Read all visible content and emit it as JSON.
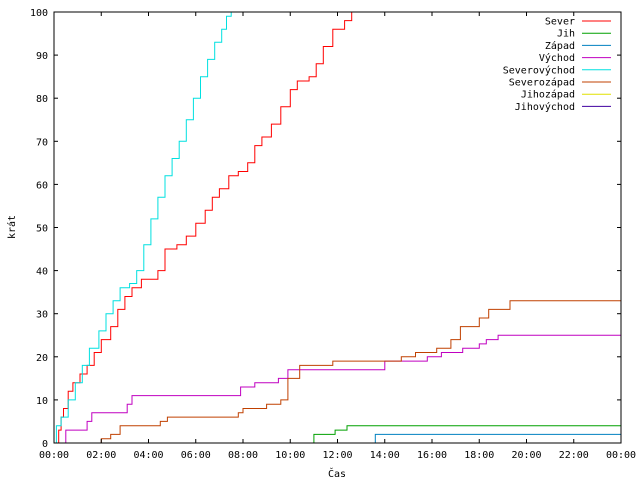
{
  "chart_data": {
    "type": "line",
    "title": "",
    "xlabel": "Čas",
    "ylabel": "krát",
    "xlim": [
      0,
      24
    ],
    "ylim": [
      0,
      100
    ],
    "x_tick_labels": [
      "00:00",
      "02:00",
      "04:00",
      "06:00",
      "08:00",
      "10:00",
      "12:00",
      "14:00",
      "16:00",
      "18:00",
      "20:00",
      "22:00",
      "00:00"
    ],
    "x_tick_values": [
      0,
      2,
      4,
      6,
      8,
      10,
      12,
      14,
      16,
      18,
      20,
      22,
      24
    ],
    "y_tick_labels": [
      "0",
      "10",
      "20",
      "30",
      "40",
      "50",
      "60",
      "70",
      "80",
      "90",
      "100"
    ],
    "y_tick_values": [
      0,
      10,
      20,
      30,
      40,
      50,
      60,
      70,
      80,
      90,
      100
    ],
    "grid": false,
    "legend_position": "top-right",
    "series": [
      {
        "name": "Sever",
        "color": "#ff0000",
        "points": [
          [
            0.0,
            0
          ],
          [
            0.2,
            3
          ],
          [
            0.3,
            6
          ],
          [
            0.4,
            8
          ],
          [
            0.6,
            12
          ],
          [
            0.8,
            14
          ],
          [
            1.1,
            16
          ],
          [
            1.4,
            18
          ],
          [
            1.7,
            21
          ],
          [
            2.0,
            24
          ],
          [
            2.4,
            27
          ],
          [
            2.7,
            31
          ],
          [
            3.0,
            34
          ],
          [
            3.3,
            36
          ],
          [
            3.7,
            38
          ],
          [
            4.4,
            40
          ],
          [
            4.7,
            45
          ],
          [
            5.2,
            46
          ],
          [
            5.6,
            48
          ],
          [
            6.0,
            51
          ],
          [
            6.4,
            54
          ],
          [
            6.7,
            57
          ],
          [
            7.0,
            59
          ],
          [
            7.4,
            62
          ],
          [
            7.8,
            63
          ],
          [
            8.2,
            65
          ],
          [
            8.5,
            69
          ],
          [
            8.8,
            71
          ],
          [
            9.2,
            74
          ],
          [
            9.6,
            78
          ],
          [
            10.0,
            82
          ],
          [
            10.3,
            84
          ],
          [
            10.8,
            85
          ],
          [
            11.1,
            88
          ],
          [
            11.4,
            92
          ],
          [
            11.8,
            96
          ],
          [
            12.3,
            98
          ],
          [
            12.6,
            100
          ]
        ]
      },
      {
        "name": "Jih",
        "color": "#00a000",
        "points": [
          [
            10.9,
            0
          ],
          [
            11.0,
            2
          ],
          [
            11.8,
            2
          ],
          [
            11.9,
            3
          ],
          [
            12.3,
            3
          ],
          [
            12.4,
            4
          ],
          [
            24.0,
            4
          ]
        ]
      },
      {
        "name": "Západ",
        "color": "#0080c0",
        "points": [
          [
            13.5,
            0
          ],
          [
            13.6,
            2
          ],
          [
            24.0,
            2
          ]
        ]
      },
      {
        "name": "Východ",
        "color": "#c000c0",
        "points": [
          [
            0.0,
            0
          ],
          [
            0.5,
            3
          ],
          [
            1.4,
            5
          ],
          [
            1.6,
            7
          ],
          [
            3.1,
            9
          ],
          [
            3.3,
            11
          ],
          [
            7.9,
            13
          ],
          [
            8.5,
            14
          ],
          [
            9.5,
            15
          ],
          [
            9.9,
            17
          ],
          [
            14.0,
            19
          ],
          [
            15.8,
            20
          ],
          [
            16.4,
            21
          ],
          [
            17.3,
            22
          ],
          [
            18.0,
            23
          ],
          [
            18.3,
            24
          ],
          [
            18.8,
            25
          ],
          [
            24.0,
            25
          ]
        ]
      },
      {
        "name": "Severovýchod",
        "color": "#00e0e0",
        "points": [
          [
            0.0,
            0
          ],
          [
            0.1,
            4
          ],
          [
            0.3,
            6
          ],
          [
            0.6,
            10
          ],
          [
            0.9,
            14
          ],
          [
            1.2,
            18
          ],
          [
            1.5,
            22
          ],
          [
            1.9,
            26
          ],
          [
            2.2,
            30
          ],
          [
            2.5,
            33
          ],
          [
            2.8,
            36
          ],
          [
            3.2,
            37
          ],
          [
            3.5,
            40
          ],
          [
            3.8,
            46
          ],
          [
            4.1,
            52
          ],
          [
            4.4,
            57
          ],
          [
            4.7,
            62
          ],
          [
            5.0,
            66
          ],
          [
            5.3,
            70
          ],
          [
            5.6,
            75
          ],
          [
            5.9,
            80
          ],
          [
            6.2,
            85
          ],
          [
            6.5,
            89
          ],
          [
            6.8,
            93
          ],
          [
            7.1,
            96
          ],
          [
            7.3,
            99
          ],
          [
            7.5,
            100
          ]
        ]
      },
      {
        "name": "Severozápad",
        "color": "#c04000",
        "points": [
          [
            1.9,
            0
          ],
          [
            2.0,
            1
          ],
          [
            2.4,
            2
          ],
          [
            2.8,
            4
          ],
          [
            4.5,
            5
          ],
          [
            4.8,
            6
          ],
          [
            7.8,
            7
          ],
          [
            8.0,
            8
          ],
          [
            9.0,
            9
          ],
          [
            9.6,
            10
          ],
          [
            9.9,
            15
          ],
          [
            10.4,
            18
          ],
          [
            11.8,
            19
          ],
          [
            14.7,
            20
          ],
          [
            15.3,
            21
          ],
          [
            16.2,
            22
          ],
          [
            16.8,
            24
          ],
          [
            17.2,
            27
          ],
          [
            18.0,
            29
          ],
          [
            18.4,
            31
          ],
          [
            19.3,
            33
          ],
          [
            24.0,
            33
          ]
        ]
      },
      {
        "name": "Jihozápad",
        "color": "#e0e000",
        "points": []
      },
      {
        "name": "Jihovýchod",
        "color": "#4000a0",
        "points": []
      }
    ]
  }
}
